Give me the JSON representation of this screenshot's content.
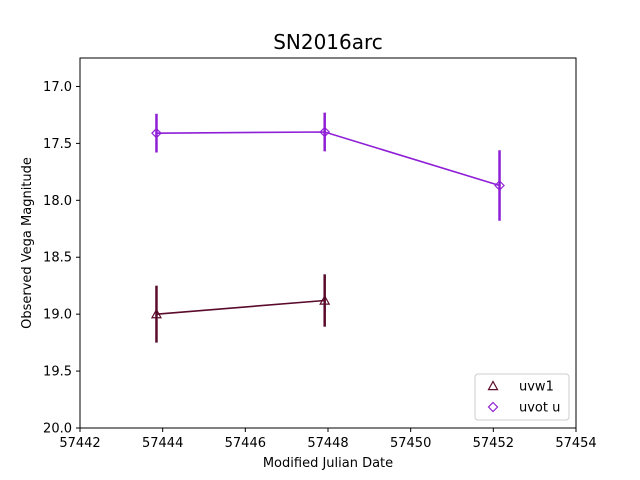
{
  "chart_data": {
    "type": "scatter",
    "title": "SN2016arc",
    "xlabel": "Modified Julian Date",
    "ylabel": "Observed Vega Magnitude",
    "xlim": [
      57442,
      57454
    ],
    "ylim": [
      20.0,
      16.75
    ],
    "y_inverted": true,
    "x_ticks": [
      57442,
      57444,
      57446,
      57448,
      57450,
      57452,
      57454
    ],
    "y_ticks": [
      17.0,
      17.5,
      18.0,
      18.5,
      19.0,
      19.5,
      20.0
    ],
    "x_tick_labels": [
      "57442",
      "57444",
      "57446",
      "57448",
      "57450",
      "57452",
      "57454"
    ],
    "y_tick_labels": [
      "17.0",
      "17.5",
      "18.0",
      "18.5",
      "19.0",
      "19.5",
      "20.0"
    ],
    "grid": false,
    "legend_position": "lower-right",
    "series": [
      {
        "name": "uvw1",
        "marker": "triangle",
        "color": "#5a0a2a",
        "x": [
          57443.85,
          57447.92
        ],
        "y": [
          19.0,
          18.88
        ],
        "yerr": [
          0.25,
          0.23
        ]
      },
      {
        "name": "uvot u",
        "marker": "diamond",
        "color": "#8f1fd6",
        "x": [
          57443.85,
          57447.92,
          57452.15
        ],
        "y": [
          17.41,
          17.4,
          17.87
        ],
        "yerr": [
          0.17,
          0.17,
          0.31
        ]
      }
    ]
  }
}
